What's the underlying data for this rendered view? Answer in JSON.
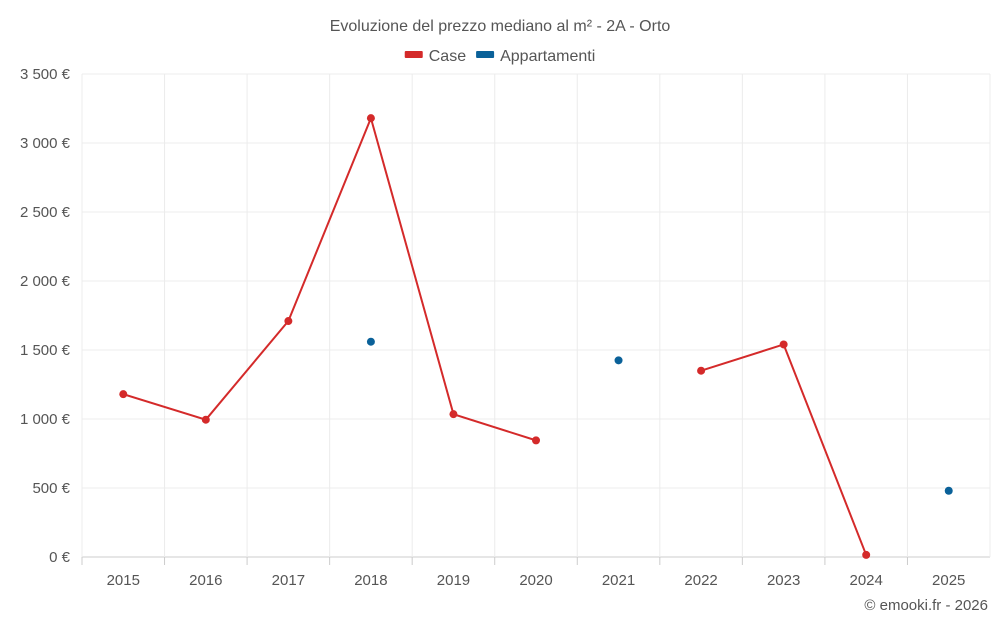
{
  "chart_data": {
    "type": "line",
    "title": "Evoluzione del prezzo mediano al m² - 2A - Orto",
    "categories": [
      "2015",
      "2016",
      "2017",
      "2018",
      "2019",
      "2020",
      "2021",
      "2022",
      "2023",
      "2024",
      "2025"
    ],
    "ylim": [
      0,
      3500
    ],
    "yticks": [
      0,
      500,
      1000,
      1500,
      2000,
      2500,
      3000,
      3500
    ],
    "ytick_labels": [
      "0 €",
      "500 €",
      "1 000 €",
      "1 500 €",
      "2 000 €",
      "2 500 €",
      "3 000 €",
      "3 500 €"
    ],
    "grid": true,
    "legend_position": "top-center",
    "series": [
      {
        "name": "Case",
        "color": "#d42a2a",
        "values": [
          1180,
          995,
          1710,
          3180,
          1035,
          845,
          null,
          1350,
          1540,
          15,
          null
        ]
      },
      {
        "name": "Appartamenti",
        "color": "#0a6199",
        "values": [
          null,
          null,
          null,
          1560,
          null,
          null,
          1425,
          null,
          null,
          null,
          480
        ]
      }
    ]
  },
  "credit": "© emooki.fr - 2026"
}
